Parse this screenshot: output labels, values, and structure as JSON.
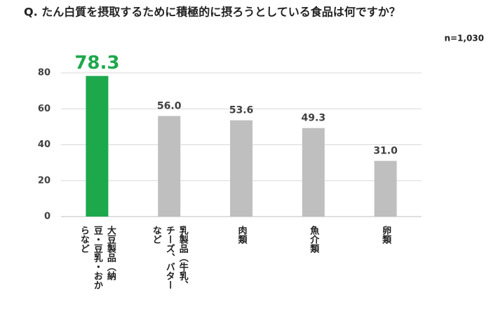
{
  "chart_data": {
    "type": "bar",
    "title": "Q. たん白質を摂取するために積極的に摂ろうとしている食品は何ですか？",
    "subtitle": "n=1,030",
    "categories": [
      "大豆製品（納豆・豆乳・おからなど",
      "乳製品（牛乳、チーズ、バターなど",
      "肉類",
      "魚介類",
      "卵類"
    ],
    "values": [
      78.3,
      56.0,
      53.6,
      49.3,
      31.0
    ],
    "value_labels": [
      "78.3",
      "56.0",
      "53.6",
      "49.3",
      "31.0"
    ],
    "colors": [
      "#1ea84c",
      "#bfbfbf",
      "#bfbfbf",
      "#bfbfbf",
      "#bfbfbf"
    ],
    "ylim": [
      0,
      80
    ],
    "yticks": [
      0,
      20,
      40,
      60,
      80
    ],
    "grid": true
  }
}
